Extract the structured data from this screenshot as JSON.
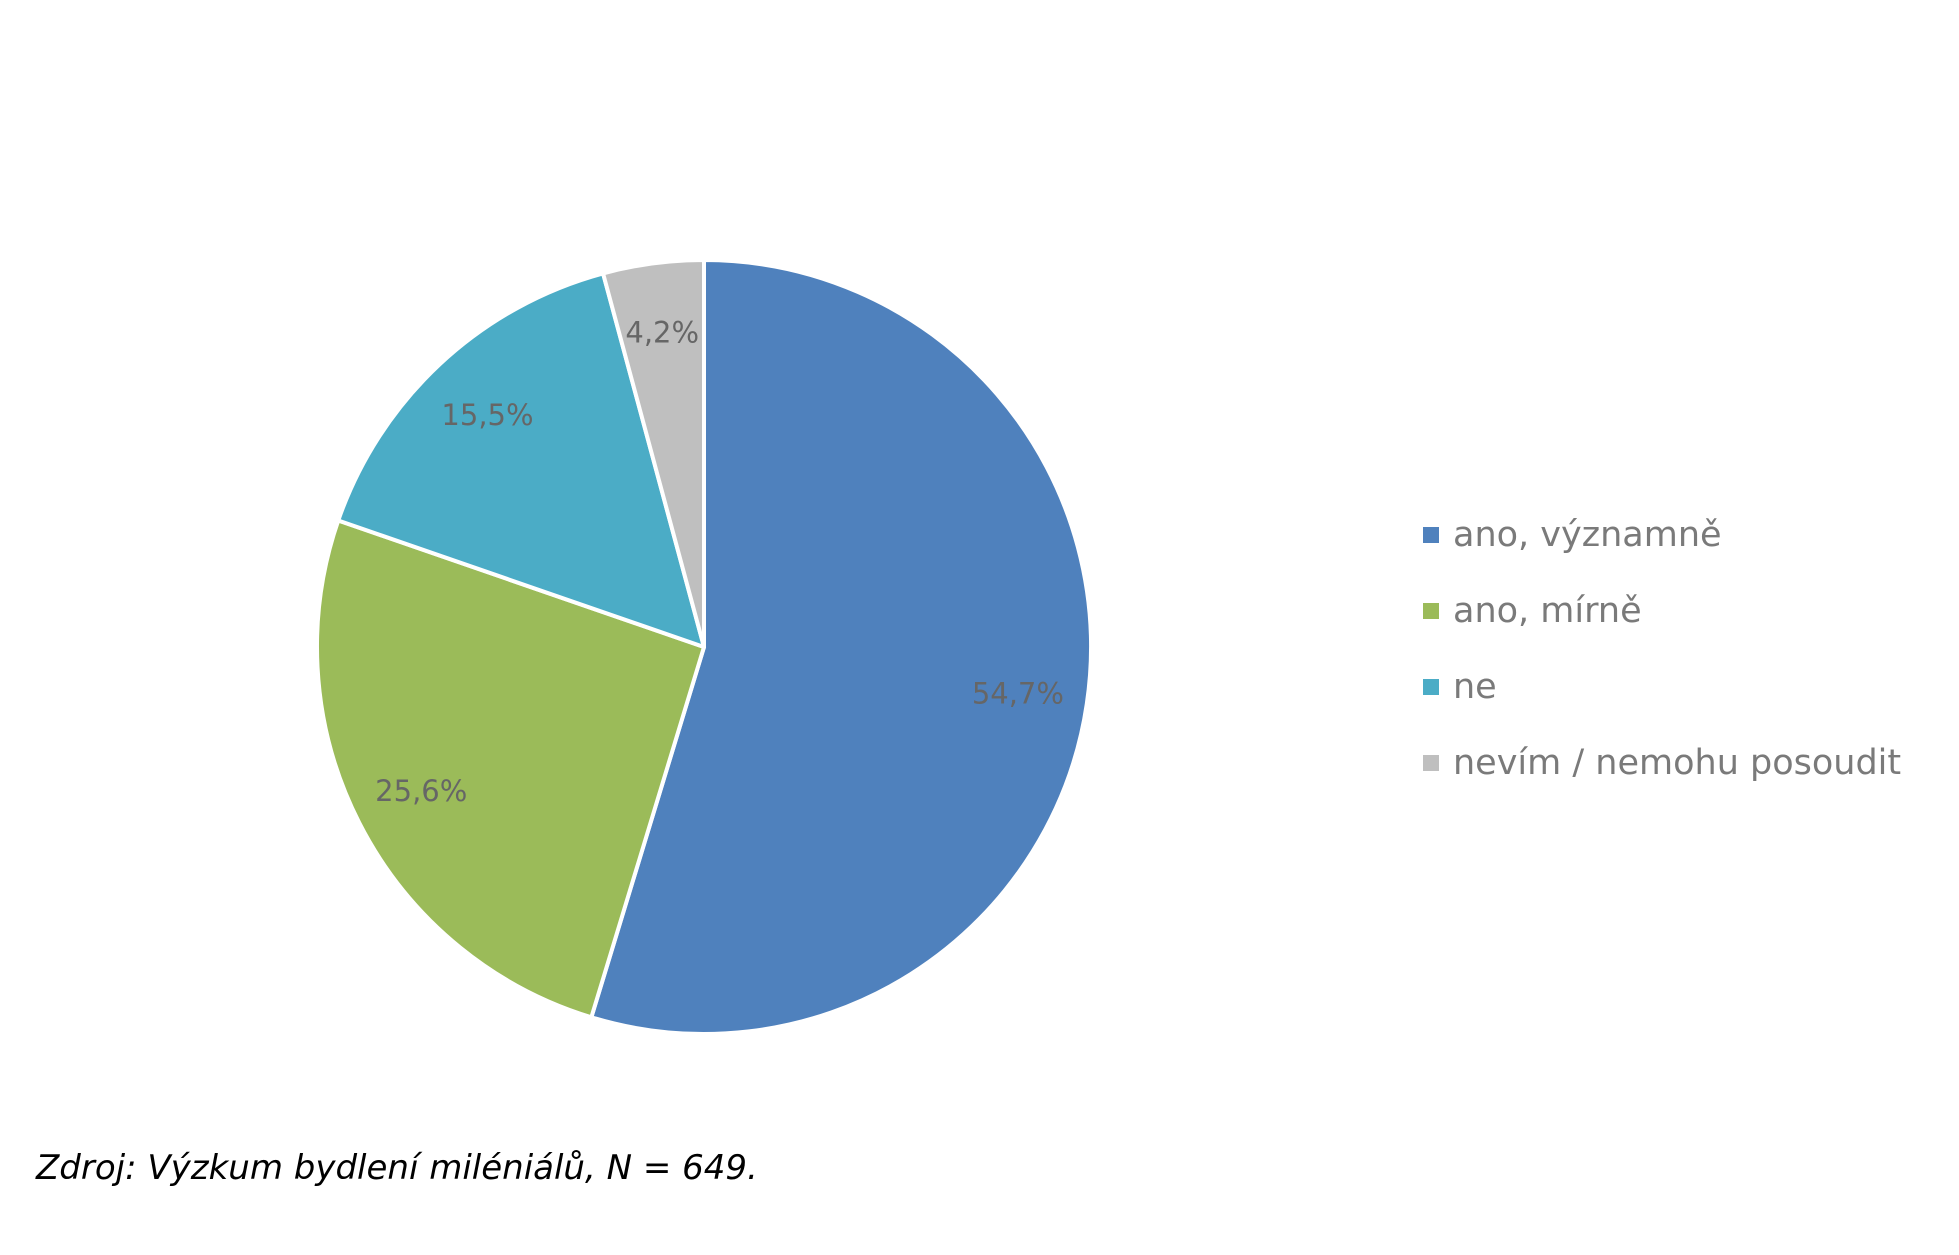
{
  "chart_data": {
    "type": "pie",
    "title": "",
    "series": [
      {
        "values": [
          54.7,
          25.6,
          15.5,
          4.2
        ]
      }
    ],
    "categories": [
      "ano, významně",
      "ano, mírně",
      "ne",
      "nevím / nemohu posoudit"
    ],
    "data_labels": [
      "54,7%",
      "25,6%",
      "15,5%",
      "4,2%"
    ],
    "colors": [
      "#4f81bd",
      "#9bbb59",
      "#4bacc6",
      "#bfbfbf"
    ],
    "start_angle": "12 o'clock",
    "direction": "clockwise",
    "legend_position": "right",
    "slice_border_color": "#ffffff"
  },
  "source_note": "Zdroj: Výzkum bydlení miléniálů, N = 649."
}
